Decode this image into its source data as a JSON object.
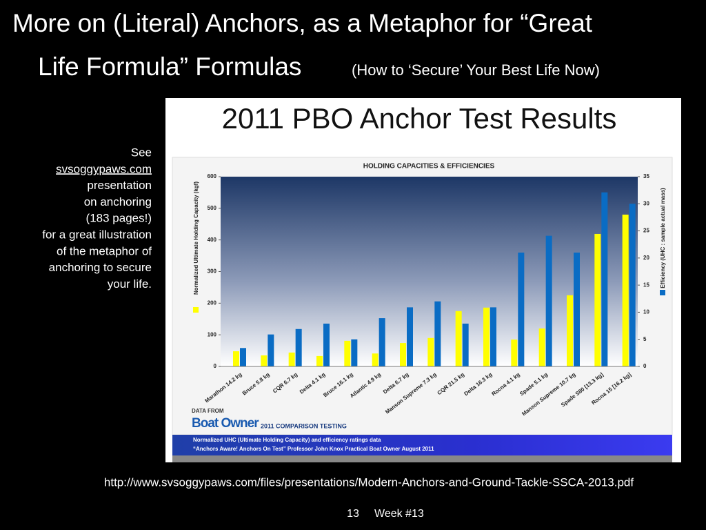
{
  "slide": {
    "title_lines": [
      "More on (Literal) Anchors, as a Metaphor for “Great",
      "Life Formula” Formulas"
    ],
    "subtitle": "(How to ‘Secure’ Your Best Life Now)",
    "note_lines": [
      "See",
      "svsoggypaws.com",
      "presentation",
      "on anchoring",
      "(183 pages!)",
      "for a great illustration",
      "of the metaphor of",
      "anchoring to secure",
      "your life."
    ],
    "url": "http://www.svsoggypaws.com/files/presentations/Modern-Anchors-and-Ground-Tackle-SSCA-2013.pdf",
    "page": "13",
    "week": "Week #13",
    "image_title": "2011 PBO Anchor Test Results",
    "data_from": "DATA FROM",
    "brand": "Boat Owner",
    "testing": "2011 COMPARISON TESTING",
    "source_lines": [
      "Normalized UHC (Ultimate Holding Capacity) and efficiency ratings data",
      "“Anchors Aware! Anchors On Test” Professor John Knox Practical Boat Owner August 2011"
    ]
  },
  "chart_data": {
    "type": "bar",
    "title": "HOLDING CAPACITIES & EFFICIENCIES",
    "y_label": "Normalized Ultimate Holding Capacity (kgf)",
    "y2_label": "Efficiency (UHC : sample actual mass)",
    "categories": [
      "Marathon 14.2 kg",
      "Bruce 5.8 kg",
      "CQR 6.7 kg",
      "Delta 4.1 kg",
      "Bruce 16.1 kg",
      "Atlantic 4.9 kg",
      "Delta 6.7 kg",
      "Manson Supreme 7.3 kg",
      "CQR 21.5 kg",
      "Delta 16.3 kg",
      "Rocna 4.1 kg",
      "Spade 5.1 kg",
      "Manson Supreme 10.7 kg",
      "Spade S80 [13.3 kg]",
      "Rocna 15 [16.2 kg]"
    ],
    "series": [
      {
        "color": "#ffff00",
        "values": [
          48,
          35,
          44,
          33,
          81,
          41,
          74,
          90,
          175,
          186,
          85,
          120,
          225,
          419,
          480
        ]
      },
      {
        "color": "#0a6cc4",
        "axis": "y2",
        "values": [
          3.4,
          5.9,
          6.9,
          7.9,
          5.0,
          8.9,
          10.9,
          12.0,
          7.9,
          10.9,
          21.0,
          24.1,
          21.0,
          32.1,
          30.0
        ]
      }
    ],
    "ylim": [
      0,
      600
    ],
    "yticks": [
      0,
      100,
      200,
      300,
      400,
      500,
      600
    ],
    "y2lim": [
      0,
      35
    ],
    "y2ticks": [
      0,
      5,
      10,
      15,
      20,
      25,
      30,
      35
    ]
  }
}
